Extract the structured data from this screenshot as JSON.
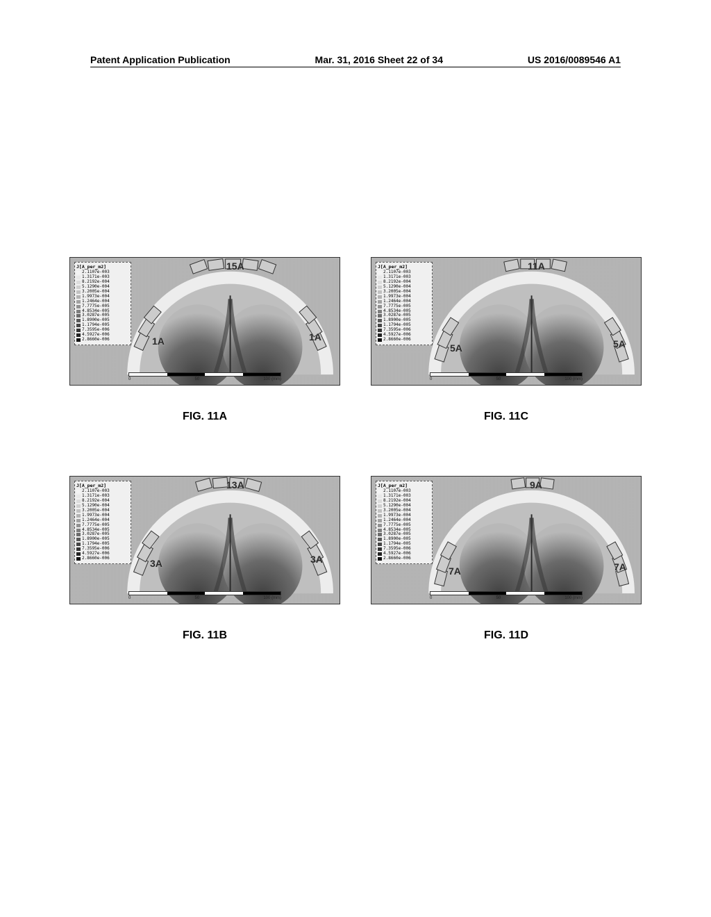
{
  "header": {
    "left": "Patent Application Publication",
    "center": "Mar. 31, 2016  Sheet 22 of 34",
    "right": "US 2016/0089546 A1"
  },
  "legend": {
    "title": "J[A_per_m2]",
    "values": [
      "2.1107e-003",
      "1.3171e-003",
      "8.2192e-004",
      "5.1290e-004",
      "3.2005e-004",
      "1.9973e-004",
      "1.2464e-004",
      "7.7775e-005",
      "4.8534e-005",
      "3.0287e-005",
      "1.8900e-005",
      "1.1794e-005",
      "7.3595e-006",
      "4.5927e-006",
      "2.8660e-006"
    ],
    "swatches": [
      "#f4f4f4",
      "#e8e8e8",
      "#dcdcdc",
      "#cfcfcf",
      "#c1c1c1",
      "#b2b2b2",
      "#a2a2a2",
      "#919191",
      "#7f7f7f",
      "#6c6c6c",
      "#595959",
      "#464646",
      "#343434",
      "#222222",
      "#111111"
    ]
  },
  "scale": {
    "left": "0",
    "mid": "50",
    "right": "100 (mm)"
  },
  "figures": {
    "a": {
      "caption": "FIG. 11A",
      "top_label": "15A",
      "side_label": "1A"
    },
    "b": {
      "caption": "FIG. 11B",
      "top_label": "13A",
      "side_label": "3A"
    },
    "c": {
      "caption": "FIG. 11C",
      "top_label": "11A",
      "side_label": "5A"
    },
    "d": {
      "caption": "FIG. 11D",
      "top_label": "9A",
      "side_label": "7A"
    }
  },
  "colors": {
    "panel_bg": "#b0b0b0",
    "skull_light": "#d8d8d8",
    "skull_dark": "#505050",
    "electrode_fill": "#cccccc",
    "electrode_stroke": "#333333"
  }
}
